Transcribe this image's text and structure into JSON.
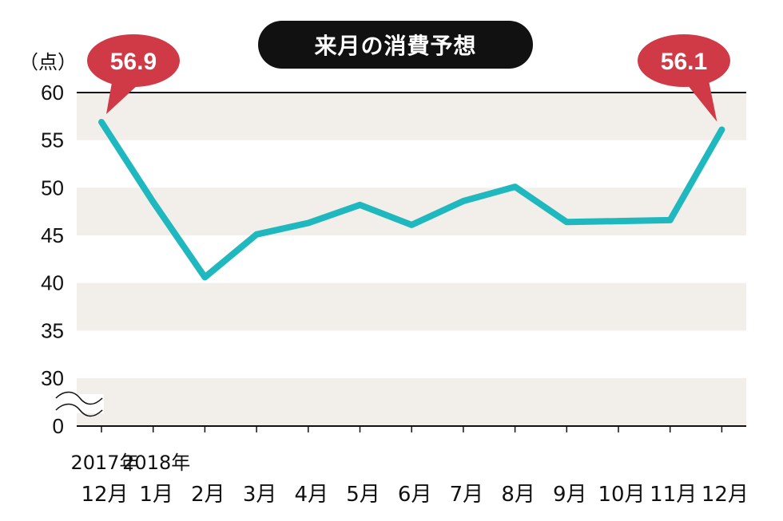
{
  "chart_data": {
    "type": "line",
    "title": "来月の消費予想",
    "unit_label": "（点）",
    "categories": [
      "12月",
      "1月",
      "2月",
      "3月",
      "4月",
      "5月",
      "6月",
      "7月",
      "8月",
      "9月",
      "10月",
      "11月",
      "12月"
    ],
    "year_labels": [
      {
        "index": 0,
        "label": "2017年"
      },
      {
        "index": 1,
        "label": "2018年"
      }
    ],
    "series": [
      {
        "values": [
          56.9,
          48.5,
          40.6,
          45.1,
          46.3,
          48.2,
          46.1,
          48.6,
          50.1,
          46.4,
          46.5,
          46.6,
          56.1
        ]
      }
    ],
    "yticks": [
      60,
      55,
      50,
      45,
      40,
      35,
      30,
      0
    ],
    "ylim": [
      30,
      60
    ],
    "axis_break": true,
    "grid": "alternating-bands",
    "annotations": [
      {
        "index": 0,
        "label": "56.9"
      },
      {
        "index": 12,
        "label": "56.1"
      }
    ],
    "colors": {
      "line": "#1fb8bf",
      "band": "#f2eee9",
      "callout": "#cf3a46",
      "title_bg": "#111111"
    }
  }
}
